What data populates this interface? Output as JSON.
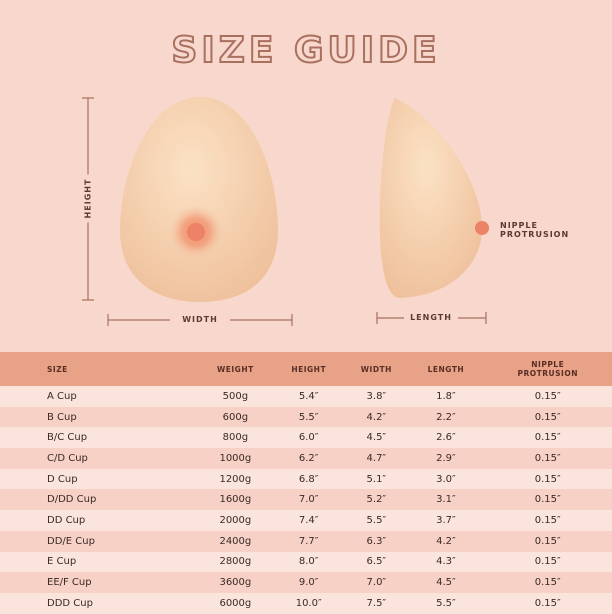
{
  "title": "SIZE GUIDE",
  "labels": {
    "height": "HEIGHT",
    "width": "WIDTH",
    "length": "LENGTH",
    "nipple": "NIPPLE",
    "protrusion": "PROTRUSION"
  },
  "colors": {
    "background": "#f8d8cd",
    "header": "#e7a287",
    "title_outline": "#a9705f"
  },
  "table": {
    "headers": [
      "SIZE",
      "WEIGHT",
      "HEIGHT",
      "WIDTH",
      "LENGTH",
      "NIPPLE PROTRUSION"
    ],
    "rows": [
      [
        "A Cup",
        "500g",
        "5.4″",
        "3.8″",
        "1.8″",
        "0.15″"
      ],
      [
        "B Cup",
        "600g",
        "5.5″",
        "4.2″",
        "2.2″",
        "0.15″"
      ],
      [
        "B/C Cup",
        "800g",
        "6.0″",
        "4.5″",
        "2.6″",
        "0.15″"
      ],
      [
        "C/D Cup",
        "1000g",
        "6.2″",
        "4.7″",
        "2.9″",
        "0.15″"
      ],
      [
        "D Cup",
        "1200g",
        "6.8″",
        "5.1″",
        "3.0″",
        "0.15″"
      ],
      [
        "D/DD Cup",
        "1600g",
        "7.0″",
        "5.2″",
        "3.1″",
        "0.15″"
      ],
      [
        "DD Cup",
        "2000g",
        "7.4″",
        "5.5″",
        "3.7″",
        "0.15″"
      ],
      [
        "DD/E Cup",
        "2400g",
        "7.7″",
        "6.3″",
        "4.2″",
        "0.15″"
      ],
      [
        "E Cup",
        "2800g",
        "8.0″",
        "6.5″",
        "4.3″",
        "0.15″"
      ],
      [
        "EE/F Cup",
        "3600g",
        "9.0″",
        "7.0″",
        "4.5″",
        "0.15″"
      ],
      [
        "DDD Cup",
        "6000g",
        "10.0″",
        "7.5″",
        "5.5″",
        "0.15″"
      ]
    ]
  }
}
